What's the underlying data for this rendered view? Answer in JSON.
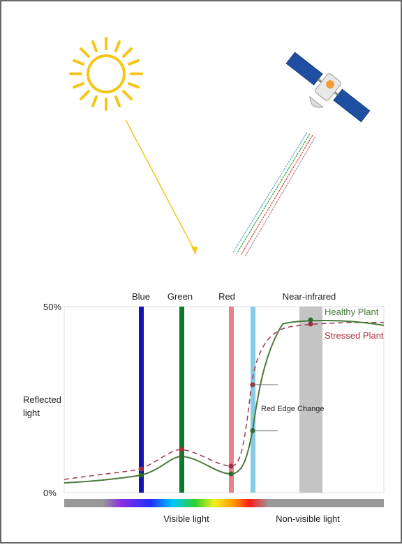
{
  "chart": {
    "bands": [
      "Blue",
      "Green",
      "Red",
      "Near-infrared"
    ],
    "legend": [
      "Healthy Plant",
      "Stressed Plant"
    ],
    "y_axis": {
      "ticks": [
        "50%",
        "0%"
      ],
      "label_lines": [
        "Reflected",
        "light"
      ]
    },
    "annotation": "Red Edge Change",
    "spectrum": [
      "Visible light",
      "Non-visible light"
    ]
  }
}
